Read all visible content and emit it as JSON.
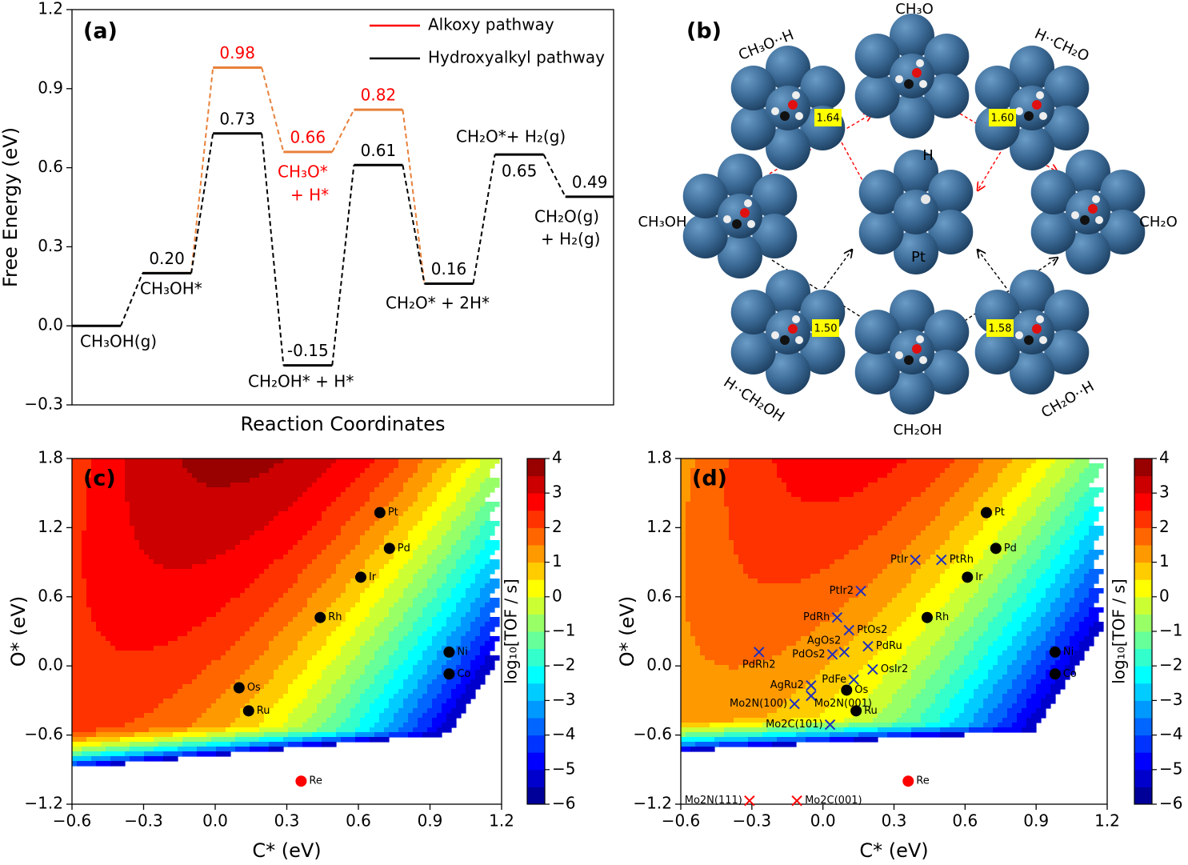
{
  "chart_data": [
    {
      "type": "energy",
      "label": "(a)",
      "xlabel": "Reaction Coordinates",
      "ylabel": "Free Energy (eV)",
      "ylim": [
        -0.3,
        1.2
      ],
      "yticks": [
        {
          "value": -0.3,
          "label": "−0.3"
        },
        {
          "value": 0,
          "label": "0.0"
        },
        0.3,
        0.6,
        0.9,
        1.2
      ],
      "legend": "upper right",
      "series": [
        {
          "name": "Alkoxy pathway",
          "color": "#e8803a",
          "values": [
            null,
            0.2,
            0.98,
            0.66,
            0.82,
            0.16,
            null,
            null
          ],
          "value_labels": [
            null,
            null,
            "0.98",
            "0.66",
            "0.82",
            null,
            null,
            null
          ]
        },
        {
          "name": "Hydroxyalkyl pathway",
          "color": "#000000",
          "values": [
            0,
            0.2,
            0.73,
            -0.15,
            0.61,
            0.16,
            0.65,
            0.49
          ],
          "value_labels": [
            null,
            "0.20",
            "0.73",
            "-0.15",
            "0.61",
            "0.16",
            "0.65",
            "0.49"
          ]
        }
      ],
      "annotations": [
        "CH₃OH(g)",
        "CH₃OH*",
        "CH₂OH* + H*",
        "CH₂O* + 2H*",
        "CH₂O*+ H₂(g)",
        "CH₂O(g)",
        "+ H₂(g)",
        "CH₃O*",
        "+ H*"
      ]
    },
    {
      "type": "contour",
      "label": "(c)",
      "xlabel": "C* (eV)",
      "ylabel": "O* (eV)",
      "xlim": [
        -0.6,
        1.2
      ],
      "ylim": [
        -1.2,
        1.8
      ],
      "xticks": [
        {
          "value": -0.6,
          "label": "−0.6"
        },
        {
          "value": -0.3,
          "label": "−0.3"
        },
        {
          "value": 0,
          "label": "0.0"
        },
        0.3,
        0.6,
        0.9,
        1.2
      ],
      "yticks": [
        {
          "value": -1.2,
          "label": "−1.2"
        },
        {
          "value": -0.6,
          "label": "−0.6"
        },
        {
          "value": 0,
          "label": "0.0"
        },
        0.6,
        1.2,
        1.8
      ],
      "colorbar": {
        "label": "log₁₀[TOF / s]",
        "colormap": "jet",
        "lim": [
          -6,
          4
        ],
        "ticks": [
          {
            "value": -6,
            "label": "−6"
          },
          {
            "value": -5,
            "label": "−5"
          },
          {
            "value": -4,
            "label": "−4"
          },
          {
            "value": -3,
            "label": "−3"
          },
          {
            "value": -2,
            "label": "−2"
          },
          {
            "value": -1,
            "label": "−1"
          },
          0,
          1,
          2,
          3,
          4
        ]
      },
      "series": [
        {
          "marker": "circle",
          "color": "#000000",
          "x": [
            0.69,
            0.73,
            0.61,
            0.44,
            0.98,
            0.98,
            0.1,
            0.14
          ],
          "y": [
            1.33,
            1.02,
            0.77,
            0.42,
            0.12,
            -0.07,
            -0.19,
            -0.39
          ],
          "labels": [
            "Pt",
            "Pd",
            "Ir",
            "Rh",
            "Ni",
            "Co",
            "Os",
            "Ru"
          ]
        },
        {
          "marker": "circle",
          "color": "#ff0000",
          "x": [
            0.36
          ],
          "y": [
            -1.0
          ],
          "labels": [
            "Re"
          ]
        }
      ]
    },
    {
      "type": "contour",
      "label": "(d)",
      "xlabel": "C* (eV)",
      "ylabel": "O* (eV)",
      "xlim": [
        -0.6,
        1.2
      ],
      "ylim": [
        -1.2,
        1.8
      ],
      "xticks": [
        {
          "value": -0.6,
          "label": "−0.6"
        },
        {
          "value": -0.3,
          "label": "−0.3"
        },
        {
          "value": 0,
          "label": "0.0"
        },
        0.3,
        0.6,
        0.9,
        1.2
      ],
      "yticks": [
        {
          "value": -1.2,
          "label": "−1.2"
        },
        {
          "value": -0.6,
          "label": "−0.6"
        },
        {
          "value": 0,
          "label": "0.0"
        },
        0.6,
        1.2,
        1.8
      ],
      "colorbar": {
        "label": "log₁₀[TOF / s]",
        "colormap": "jet",
        "lim": [
          -6,
          4
        ],
        "ticks": [
          {
            "value": -6,
            "label": "−6"
          },
          {
            "value": -5,
            "label": "−5"
          },
          {
            "value": -4,
            "label": "−4"
          },
          {
            "value": -3,
            "label": "−3"
          },
          {
            "value": -2,
            "label": "−2"
          },
          {
            "value": -1,
            "label": "−1"
          },
          0,
          1,
          2,
          3,
          4
        ]
      },
      "series": [
        {
          "marker": "circle",
          "color": "#000000",
          "x": [
            0.69,
            0.73,
            0.61,
            0.44,
            0.98,
            0.98,
            0.1,
            0.14
          ],
          "y": [
            1.33,
            1.02,
            0.77,
            0.42,
            0.12,
            -0.07,
            -0.21,
            -0.39
          ],
          "labels": [
            "Pt",
            "Pd",
            "Ir",
            "Rh",
            "Ni",
            "Co",
            "Os",
            "Ru"
          ]
        },
        {
          "marker": "circle",
          "color": "#ff0000",
          "x": [
            0.36
          ],
          "y": [
            -1.0
          ],
          "labels": [
            "Re"
          ]
        },
        {
          "marker": "cross",
          "color": "#1f2fbf",
          "x": [
            0.39,
            0.5,
            0.16,
            0.06,
            0.11,
            0.09,
            0.19,
            0.04,
            0.21,
            -0.27,
            0.13,
            -0.05,
            -0.05,
            -0.12,
            0.03
          ],
          "y": [
            0.92,
            0.92,
            0.65,
            0.42,
            0.31,
            0.12,
            0.17,
            0.1,
            -0.03,
            0.12,
            -0.12,
            -0.17,
            -0.26,
            -0.33,
            -0.51
          ],
          "labels": [
            "PtIr",
            "PtRh",
            "PtIr2",
            "PdRh",
            "PtOs2",
            "AgOs2",
            "PdRu",
            "PdOs2",
            "OsIr2",
            "PdRh2",
            "PdFe",
            "AgRu2",
            "Mo2N(001)",
            "Mo2N(100)",
            "Mo2C(101)"
          ]
        },
        {
          "marker": "cross",
          "color": "#ff0000",
          "x": [
            -0.31,
            -0.11
          ],
          "y": [
            -1.17,
            -1.17
          ],
          "labels": [
            "Mo2N(111)",
            "Mo2C(001)"
          ]
        }
      ]
    }
  ],
  "diagram": {
    "label": "(b)",
    "species": [
      "CH₃O··H",
      "CH₃O",
      "H··CH₂O",
      "CH₃OH",
      "H",
      "Pt",
      "CH₂O",
      "H··CH₂OH",
      "CH₂OH",
      "CH₂O··H"
    ],
    "distances": [
      "1.64",
      "1.60",
      "1.50",
      "1.58"
    ]
  }
}
